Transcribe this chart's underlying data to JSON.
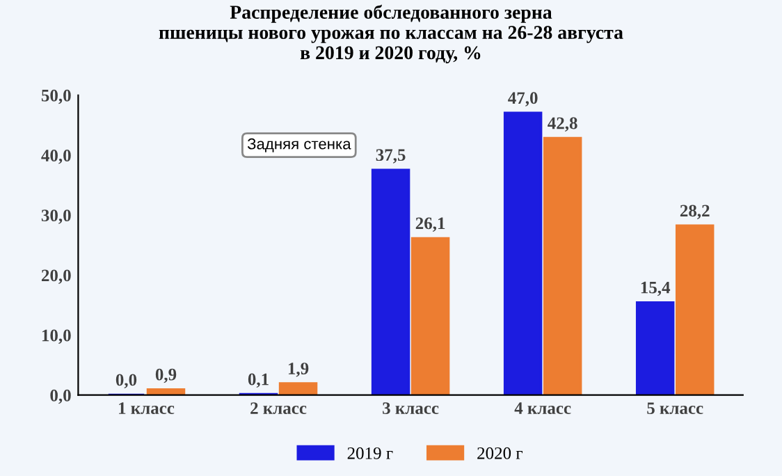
{
  "chart_data": {
    "type": "bar",
    "title": "Распределение обследованного зерна\nпшеницы нового урожая по классам на 26-28 августа\nв 2019 и 2020 году, %",
    "categories": [
      "1 класс",
      "2 класс",
      "3 класс",
      "4 класс",
      "5 класс"
    ],
    "series": [
      {
        "name": "2019 г",
        "color": "#1c1ce0",
        "values": [
          0.0,
          0.1,
          37.5,
          47.0,
          15.4
        ],
        "value_labels": [
          "0,0",
          "0,1",
          "37,5",
          "47,0",
          "15,4"
        ]
      },
      {
        "name": "2020 г",
        "color": "#ed7d31",
        "values": [
          0.9,
          1.9,
          26.1,
          42.8,
          28.2
        ],
        "value_labels": [
          "0,9",
          "1,9",
          "26,1",
          "42,8",
          "28,2"
        ]
      }
    ],
    "ylim": [
      0,
      50
    ],
    "yticks": [
      {
        "value": 0,
        "label": "0,0"
      },
      {
        "value": 10,
        "label": "10,0"
      },
      {
        "value": 20,
        "label": "20,0"
      },
      {
        "value": 30,
        "label": "30,0"
      },
      {
        "value": 40,
        "label": "40,0"
      },
      {
        "value": 50,
        "label": "50,0"
      }
    ],
    "annotations": [
      "Задняя стенка"
    ],
    "grid": false,
    "legend": "bottom"
  }
}
